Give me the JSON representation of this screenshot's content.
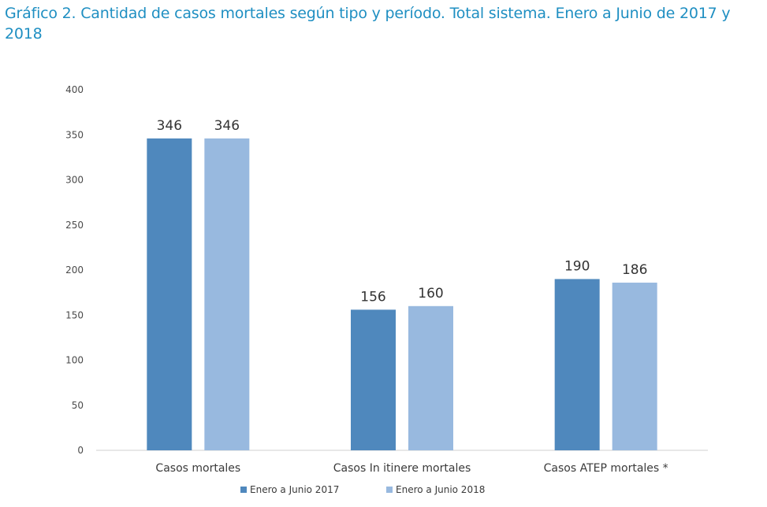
{
  "chart_data": {
    "type": "bar",
    "title": "Gráfico 2. Cantidad de casos mortales según tipo y período. Total sistema. Enero a Junio de 2017 y 2018",
    "categories": [
      "Casos mortales",
      "Casos In itinere mortales",
      "Casos ATEP mortales *"
    ],
    "series": [
      {
        "name": "Enero a Junio 2017",
        "values": [
          346,
          156,
          190
        ],
        "color": "#4f88bd"
      },
      {
        "name": "Enero a Junio 2018",
        "values": [
          346,
          160,
          186
        ],
        "color": "#98b9df"
      }
    ],
    "ylim": [
      0,
      400
    ],
    "yticks": [
      0,
      50,
      100,
      150,
      200,
      250,
      300,
      350,
      400
    ],
    "grid": false,
    "legend": "bottom",
    "xlabel": "",
    "ylabel": ""
  }
}
